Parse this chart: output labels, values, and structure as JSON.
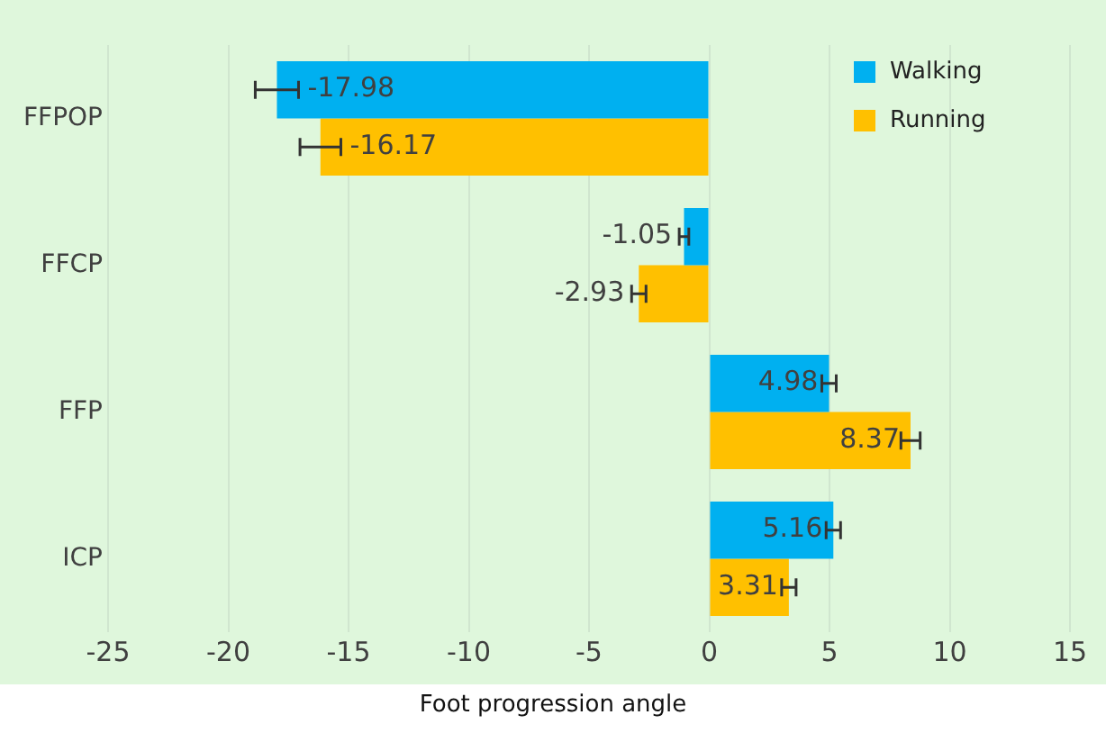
{
  "chart_data": {
    "type": "bar",
    "orientation": "horizontal",
    "xlabel": "Foot progression angle",
    "categories": [
      "FFPOP",
      "FFCP",
      "FFP",
      "ICP"
    ],
    "series": [
      {
        "name": "Walking",
        "color": "#00b0f0",
        "values": [
          -17.98,
          -1.05,
          4.98,
          5.16
        ],
        "errors": [
          0.9,
          0.2,
          0.3,
          0.3
        ]
      },
      {
        "name": "Running",
        "color": "#ffc000",
        "values": [
          -16.17,
          -2.93,
          8.37,
          3.31
        ],
        "errors": [
          0.85,
          0.3,
          0.4,
          0.3
        ]
      }
    ],
    "xlim": [
      -25,
      15
    ],
    "xticks": [
      -25,
      -20,
      -15,
      -10,
      -5,
      0,
      5,
      10,
      15
    ],
    "grid": "x",
    "legend": "top right",
    "data_labels": true
  }
}
